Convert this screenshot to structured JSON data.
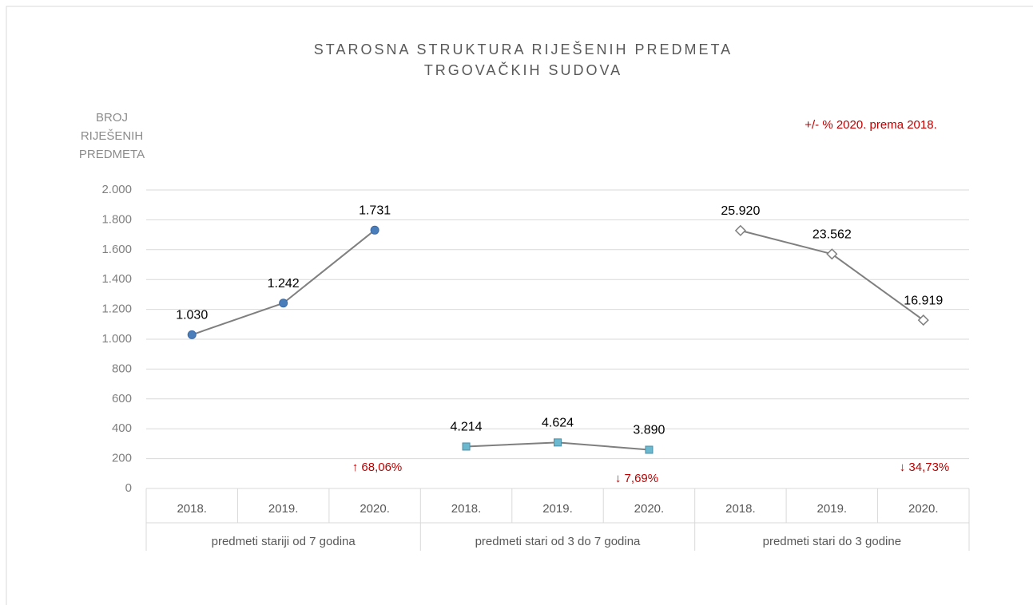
{
  "chart_data": {
    "type": "line",
    "title": [
      "STAROSNA STRUKTURA RIJEŠENIH PREDMETA",
      "TRGOVAČKIH SUDOVA"
    ],
    "y_label": [
      "BROJ",
      "RIJEŠENIH",
      "PREDMETA"
    ],
    "note": "+/- % 2020. prema 2018.",
    "annotations": [
      "↑ 68,06%",
      "↓ 7,69%",
      "↓ 34,73%"
    ],
    "categories": [
      "2018.",
      "2019.",
      "2020.",
      "2018.",
      "2019.",
      "2020.",
      "2018.",
      "2019.",
      "2020."
    ],
    "category_groups": [
      "predmeti stariji od 7 godina",
      "predmeti stari od 3 do 7 godina",
      "predmeti stari do 3 godine"
    ],
    "ylim": [
      0,
      2000
    ],
    "yticks": [
      0,
      200,
      400,
      600,
      800,
      {
        "value": 1000,
        "label": "1.000"
      },
      {
        "value": 1200,
        "label": "1.200"
      },
      {
        "value": 1400,
        "label": "1.400"
      },
      {
        "value": 1600,
        "label": "1.600"
      },
      {
        "value": 1800,
        "label": "1.800"
      },
      {
        "value": 2000,
        "label": "2.000"
      }
    ],
    "y2lim": [
      0,
      30000
    ],
    "grid": true,
    "line_color": "#7f7f7f",
    "series": [
      {
        "name": "predmeti stariji od 7 godina",
        "marker": "circle",
        "color": "#4a7ebb",
        "values": [
          1030,
          1242,
          1731,
          null,
          null,
          null,
          null,
          null,
          null
        ],
        "value_labels": [
          "1.030",
          "1.242",
          "1.731",
          null,
          null,
          null,
          null,
          null,
          null
        ]
      },
      {
        "name": "predmeti stari od 3 do 7 godina",
        "marker": "square",
        "color": "#6bb8cf",
        "axis": "y2",
        "values": [
          null,
          null,
          null,
          4214,
          4624,
          3890,
          null,
          null,
          null
        ],
        "value_labels": [
          null,
          null,
          null,
          "4.214",
          "4.624",
          "3.890",
          null,
          null,
          null
        ]
      },
      {
        "name": "predmeti stari do 3 godine",
        "marker": "diamond",
        "color": "#ffffff",
        "axis": "y2",
        "values": [
          null,
          null,
          null,
          null,
          null,
          null,
          25920,
          23562,
          16919
        ],
        "value_labels": [
          null,
          null,
          null,
          null,
          null,
          null,
          "25.920",
          "23.562",
          "16.919"
        ]
      }
    ]
  }
}
